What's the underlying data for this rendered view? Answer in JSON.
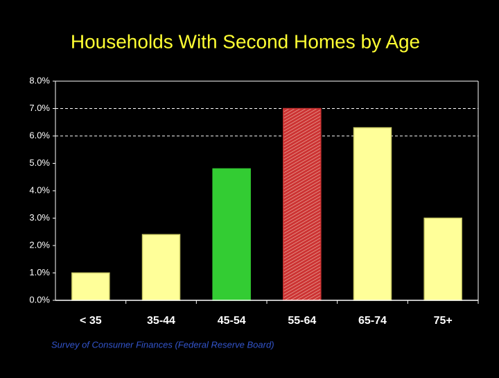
{
  "chart_data": {
    "type": "bar",
    "title": "Households With Second Homes by Age",
    "categories": [
      "< 35",
      "35-44",
      "45-54",
      "55-64",
      "65-74",
      "75+"
    ],
    "values": [
      1.0,
      2.4,
      4.8,
      7.0,
      6.3,
      3.0
    ],
    "colors": [
      "#ffff99",
      "#ffff99",
      "#33cc33",
      "#cc3333",
      "#ffff99",
      "#ffff99"
    ],
    "ylim": [
      0,
      8
    ],
    "yticks": [
      {
        "value": 0,
        "label": "0.0%"
      },
      {
        "value": 1,
        "label": "1.0%"
      },
      {
        "value": 2,
        "label": "2.0%"
      },
      {
        "value": 3,
        "label": "3.0%"
      },
      {
        "value": 4,
        "label": "4.0%"
      },
      {
        "value": 5,
        "label": "5.0%"
      },
      {
        "value": 6,
        "label": "6.0%"
      },
      {
        "value": 7,
        "label": "7.0%"
      },
      {
        "value": 8,
        "label": "8.0%"
      }
    ],
    "gridlines": [
      6,
      7
    ],
    "source": "Survey of Consumer Finances (Federal Reserve Board)"
  }
}
